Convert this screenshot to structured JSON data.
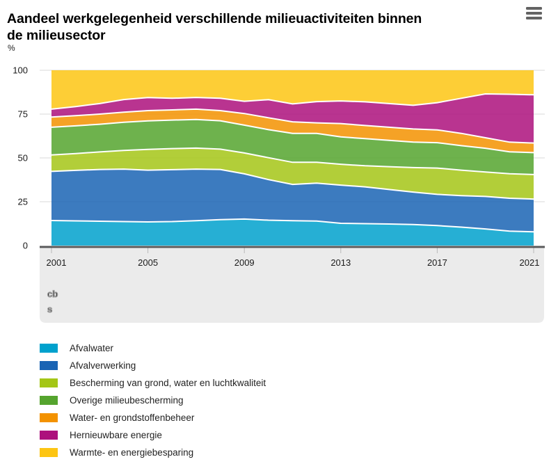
{
  "header": {
    "title": "Aandeel werkgelegenheid verschillende milieuactiviteiten binnen\nde milieusector"
  },
  "chart_data": {
    "type": "area",
    "stacked": true,
    "title": "Aandeel werkgelegenheid verschillende milieuactiviteiten binnen de milieusector",
    "unit_label": "%",
    "xlabel": "",
    "ylabel": "%",
    "ylim": [
      0,
      100
    ],
    "grid": true,
    "legend_position": "bottom",
    "x": [
      2001,
      2002,
      2003,
      2004,
      2005,
      2006,
      2007,
      2008,
      2009,
      2010,
      2011,
      2012,
      2013,
      2014,
      2015,
      2016,
      2017,
      2018,
      2019,
      2020,
      2021
    ],
    "x_tick_labels": [
      "2001",
      "2005",
      "2009",
      "2013",
      "2017",
      "2021"
    ],
    "y_ticks": [
      0,
      25,
      50,
      75,
      100
    ],
    "series": [
      {
        "name": "Afvalwater",
        "color": "#00a1cd",
        "values": [
          14.3,
          14.1,
          13.9,
          13.7,
          13.5,
          13.7,
          14.2,
          14.8,
          15.1,
          14.5,
          14.2,
          14.0,
          12.7,
          12.5,
          12.3,
          12.0,
          11.4,
          10.5,
          9.5,
          8.2,
          7.8
        ]
      },
      {
        "name": "Afvalverwerking",
        "color": "#1a64b4",
        "values": [
          28.0,
          28.8,
          29.5,
          29.9,
          29.5,
          29.6,
          29.4,
          28.6,
          25.8,
          23.1,
          20.7,
          21.6,
          21.8,
          21.0,
          19.7,
          18.5,
          17.8,
          18.0,
          18.5,
          18.8,
          18.7
        ]
      },
      {
        "name": "Bescherming van grond, water en luchtkwaliteit",
        "color": "#a4c616",
        "values": [
          9.4,
          9.6,
          10.0,
          10.7,
          11.9,
          12.0,
          12.0,
          11.6,
          11.9,
          12.5,
          12.6,
          11.9,
          11.9,
          12.0,
          13.0,
          14.0,
          15.0,
          14.5,
          14.0,
          14.0,
          14.0
        ]
      },
      {
        "name": "Overige milieubescherming",
        "color": "#55a42e",
        "values": [
          15.8,
          15.8,
          15.8,
          16.0,
          16.2,
          16.3,
          16.3,
          16.2,
          15.9,
          16.0,
          16.5,
          16.5,
          15.6,
          15.5,
          15.0,
          14.5,
          14.5,
          14.0,
          13.5,
          12.5,
          12.5
        ]
      },
      {
        "name": "Water- en grondstoffenbeheer",
        "color": "#f39200",
        "values": [
          5.8,
          5.8,
          5.8,
          5.8,
          5.9,
          5.8,
          5.9,
          5.8,
          6.6,
          6.8,
          6.6,
          6.0,
          7.6,
          7.5,
          7.5,
          7.5,
          7.3,
          7.0,
          6.0,
          5.5,
          5.5
        ]
      },
      {
        "name": "Hernieuwbare energie",
        "color": "#ad117d",
        "values": [
          4.5,
          5.2,
          6.0,
          7.2,
          7.4,
          6.6,
          6.7,
          7.0,
          7.0,
          10.3,
          10.2,
          12.1,
          12.9,
          13.5,
          13.5,
          13.5,
          15.5,
          20.0,
          25.0,
          27.3,
          27.5
        ]
      },
      {
        "name": "Warmte- en energiebesparing",
        "color": "#fdc513",
        "values": [
          22.2,
          20.7,
          19.0,
          16.7,
          15.6,
          16.0,
          15.5,
          16.0,
          17.7,
          16.8,
          19.2,
          17.9,
          17.5,
          18.0,
          19.0,
          20.0,
          18.5,
          16.0,
          13.5,
          13.7,
          14.0
        ]
      }
    ],
    "logo_text_top": "cb",
    "logo_text_bottom": "s"
  }
}
